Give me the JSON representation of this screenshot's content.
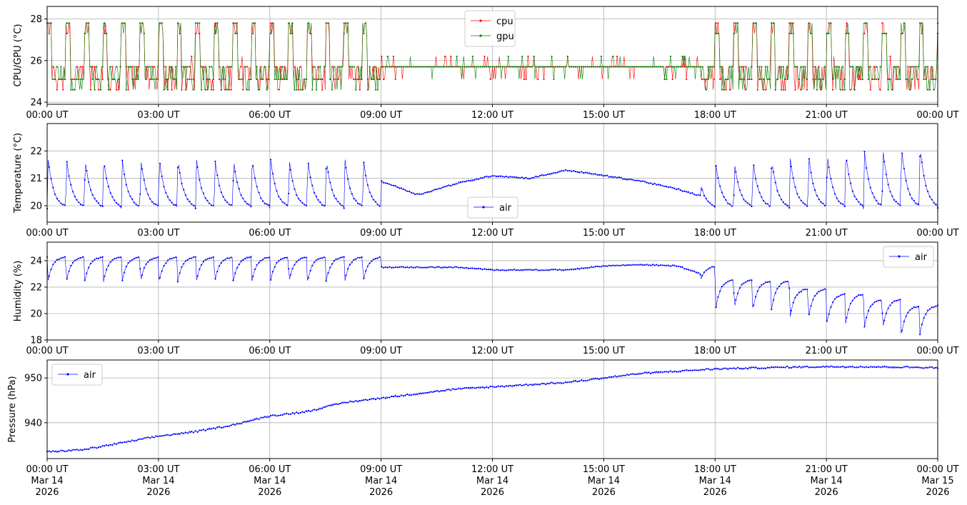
{
  "chart_data": [
    {
      "type": "line",
      "ylabel": "CPU/GPU (°C)",
      "xlim": [
        "2026-03-14T00:00Z",
        "2026-03-15T00:00Z"
      ],
      "ylim": [
        23.9,
        28.6
      ],
      "yticks": [
        "24",
        "26",
        "28"
      ],
      "xtick_labels": [
        "00:00 UT",
        "03:00 UT",
        "06:00 UT",
        "09:00 UT",
        "12:00 UT",
        "15:00 UT",
        "18:00 UT",
        "21:00 UT",
        "00:00 UT"
      ],
      "grid": true,
      "legend": "top-center",
      "series": [
        {
          "name": "cpu",
          "color": "#ff0000",
          "values_hourly": [
            24.6,
            25.7,
            24.6,
            26.2,
            24.6,
            25.7,
            25.1,
            24.6,
            25.7,
            25.1,
            25.1,
            25.7,
            25.7,
            26.2,
            26.2,
            25.7,
            25.7,
            25.1,
            25.1,
            24.6,
            24.6,
            25.7,
            25.7,
            25.1,
            25.7
          ]
        },
        {
          "name": "gpu",
          "color": "#008000",
          "values_hourly": [
            24.6,
            25.7,
            24.6,
            25.7,
            24.6,
            25.7,
            25.1,
            24.6,
            25.7,
            25.1,
            25.7,
            25.7,
            25.7,
            25.7,
            25.7,
            25.7,
            25.7,
            25.1,
            24.6,
            24.6,
            24.6,
            25.1,
            25.1,
            25.1,
            25.7
          ]
        }
      ]
    },
    {
      "type": "line",
      "ylabel": "Temperature (°C)",
      "xlim": [
        "2026-03-14T00:00Z",
        "2026-03-15T00:00Z"
      ],
      "ylim": [
        19.4,
        23.0
      ],
      "yticks": [
        "20",
        "21",
        "22"
      ],
      "xtick_labels": [
        "00:00 UT",
        "03:00 UT",
        "06:00 UT",
        "09:00 UT",
        "12:00 UT",
        "15:00 UT",
        "18:00 UT",
        "21:00 UT",
        "00:00 UT"
      ],
      "grid": true,
      "legend": "bottom-center",
      "series": [
        {
          "name": "air",
          "color": "#0000ff",
          "values_hourly": [
            20.3,
            20.9,
            20.6,
            20.8,
            20.7,
            20.9,
            20.6,
            20.6,
            20.4,
            20.9,
            20.4,
            20.8,
            21.1,
            21.0,
            21.3,
            21.1,
            20.9,
            20.6,
            20.2,
            20.5,
            20.6,
            20.9,
            21.0,
            21.0,
            20.8
          ]
        }
      ]
    },
    {
      "type": "line",
      "ylabel": "Humidity (%)",
      "xlim": [
        "2026-03-14T00:00Z",
        "2026-03-15T00:00Z"
      ],
      "ylim": [
        18,
        25.4
      ],
      "yticks": [
        "18",
        "20",
        "22",
        "24"
      ],
      "xtick_labels": [
        "00:00 UT",
        "03:00 UT",
        "06:00 UT",
        "09:00 UT",
        "12:00 UT",
        "15:00 UT",
        "18:00 UT",
        "21:00 UT",
        "00:00 UT"
      ],
      "grid": true,
      "legend": "top-right",
      "series": [
        {
          "name": "air",
          "color": "#0000ff",
          "values_hourly": [
            24.2,
            23.6,
            23.9,
            23.6,
            23.4,
            23.5,
            23.7,
            23.8,
            24.2,
            23.5,
            23.5,
            23.5,
            23.3,
            23.3,
            23.3,
            23.6,
            23.7,
            23.6,
            22.6,
            22.5,
            21.9,
            21.5,
            21.1,
            20.6,
            20.0
          ]
        }
      ]
    },
    {
      "type": "line",
      "ylabel": "Pressure (hPa)",
      "xlim": [
        "2026-03-14T00:00Z",
        "2026-03-15T00:00Z"
      ],
      "ylim": [
        932,
        954
      ],
      "yticks": [
        "940",
        "950"
      ],
      "xtick_labels": [
        "00:00 UT\nMar 14\n2026",
        "03:00 UT\nMar 14\n2026",
        "06:00 UT\nMar 14\n2026",
        "09:00 UT\nMar 14\n2026",
        "12:00 UT\nMar 14\n2026",
        "15:00 UT\nMar 14\n2026",
        "18:00 UT\nMar 14\n2026",
        "21:00 UT\nMar 14\n2026",
        "00:00 UT\nMar 15\n2026"
      ],
      "grid": true,
      "legend": "top-left",
      "series": [
        {
          "name": "air",
          "color": "#0000ff",
          "values_hourly": [
            933.5,
            934.0,
            935.5,
            937.0,
            938.0,
            939.5,
            941.5,
            942.5,
            944.5,
            945.5,
            946.5,
            947.5,
            948.0,
            948.5,
            949.0,
            950.0,
            951.0,
            951.5,
            952.0,
            952.2,
            952.4,
            952.5,
            952.5,
            952.4,
            952.3
          ]
        }
      ]
    }
  ]
}
